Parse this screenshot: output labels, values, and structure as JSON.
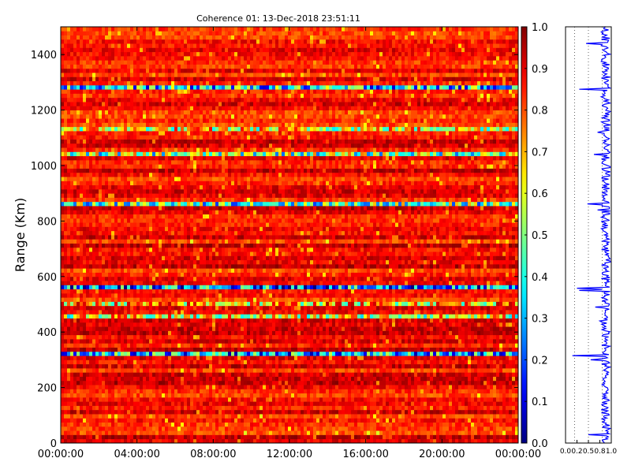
{
  "chart_data": [
    {
      "type": "heatmap",
      "title": "Coherence 01: 13-Dec-2018 23:51:11",
      "xlabel": "",
      "ylabel": "Range (Km)",
      "x_tick_labels": [
        "00:00:00",
        "04:00:00",
        "08:00:00",
        "12:00:00",
        "16:00:00",
        "20:00:00",
        "00:00:00"
      ],
      "x_range_hours": [
        0,
        24
      ],
      "ylim": [
        0,
        1500
      ],
      "y_ticks": [
        0,
        200,
        400,
        600,
        800,
        1000,
        1200,
        1400
      ],
      "colormap": "jet",
      "color_range": [
        0.0,
        1.0
      ],
      "colorbar_ticks": [
        "0.0",
        "0.1",
        "0.2",
        "0.3",
        "0.4",
        "0.5",
        "0.6",
        "0.7",
        "0.8",
        "0.9",
        "1.0"
      ],
      "range_bin_km": 15,
      "low_coherence_bands": [
        {
          "range_km": [
            1270,
            1285
          ],
          "typical": 0.35
        },
        {
          "range_km": [
            1115,
            1130
          ],
          "typical": 0.62
        },
        {
          "range_km": [
            1035,
            1050
          ],
          "typical": 0.5
        },
        {
          "range_km": [
            855,
            870
          ],
          "typical": 0.45
        },
        {
          "range_km": [
            550,
            565
          ],
          "typical": 0.25
        },
        {
          "range_km": [
            490,
            505
          ],
          "typical": 0.68
        },
        {
          "range_km": [
            440,
            455
          ],
          "typical": 0.6
        },
        {
          "range_km": [
            305,
            320
          ],
          "typical": 0.3
        }
      ],
      "background_level": 0.88
    },
    {
      "type": "line",
      "title": "",
      "xlabel": "",
      "ylabel": "",
      "xlim": [
        0.0,
        1.0
      ],
      "x_tick_labels": [
        "0.0",
        "0.2",
        "0.5",
        "0.8",
        "1.0"
      ],
      "ylim": [
        0,
        1500
      ],
      "grid": "vertical dotted",
      "line_color": "#0000ff",
      "series": [
        {
          "range_km": [
            0,
            30,
            60,
            90,
            120,
            150,
            180,
            210,
            240,
            270,
            300,
            315,
            330,
            360,
            390,
            420,
            440,
            460,
            490,
            520,
            550,
            558,
            570,
            600,
            630,
            660,
            690,
            720,
            750,
            780,
            810,
            840,
            862,
            880,
            910,
            940,
            970,
            1000,
            1040,
            1060,
            1090,
            1120,
            1150,
            1180,
            1210,
            1240,
            1275,
            1300,
            1330,
            1360,
            1390,
            1420,
            1440,
            1470,
            1500
          ],
          "coherence": [
            0.85,
            0.5,
            0.82,
            0.9,
            0.78,
            0.88,
            0.92,
            0.8,
            0.87,
            0.9,
            0.55,
            0.15,
            0.85,
            0.9,
            0.82,
            0.88,
            0.75,
            0.86,
            0.65,
            0.88,
            0.3,
            0.25,
            0.87,
            0.9,
            0.84,
            0.88,
            0.86,
            0.9,
            0.85,
            0.82,
            0.87,
            0.7,
            0.48,
            0.86,
            0.9,
            0.85,
            0.88,
            0.92,
            0.62,
            0.86,
            0.84,
            0.7,
            0.88,
            0.85,
            0.9,
            0.86,
            0.3,
            0.85,
            0.9,
            0.82,
            0.88,
            0.86,
            0.45,
            0.9,
            0.88
          ]
        }
      ]
    }
  ]
}
